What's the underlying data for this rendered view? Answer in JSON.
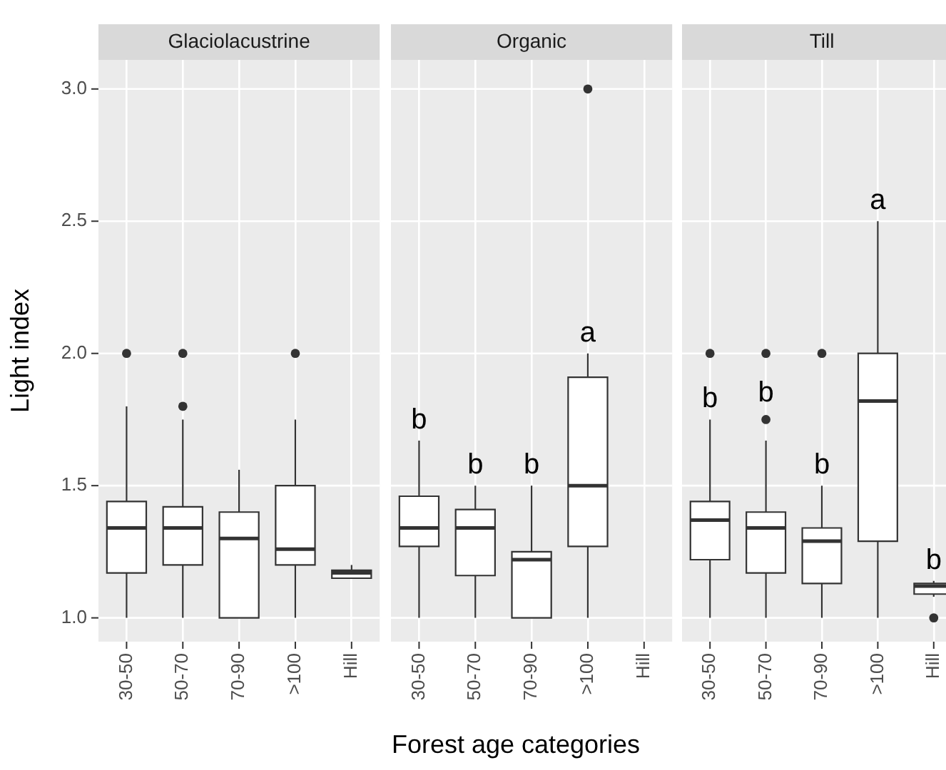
{
  "chart_data": [
    {
      "type": "box",
      "title": "Glaciolacustrine",
      "ylabel": "Light index",
      "categories": [
        "30-50",
        "50-70",
        "70-90",
        ">100",
        "Hill"
      ],
      "ylim": [
        0.91,
        3.11
      ],
      "yticks": [
        {
          "value": 1,
          "label": "1.0"
        },
        1.5,
        {
          "value": 2,
          "label": "2.0"
        },
        2.5,
        {
          "value": 3,
          "label": "3.0"
        }
      ],
      "grid": true,
      "legend": false,
      "boxes": [
        {
          "low": 1.0,
          "q1": 1.17,
          "median": 1.34,
          "q3": 1.44,
          "high": 1.8,
          "outliers": [
            2.0
          ]
        },
        {
          "low": 1.0,
          "q1": 1.2,
          "median": 1.34,
          "q3": 1.42,
          "high": 1.75,
          "outliers": [
            1.8,
            2.0
          ]
        },
        {
          "low": 1.0,
          "q1": 1.0,
          "median": 1.3,
          "q3": 1.4,
          "high": 1.56
        },
        {
          "low": 1.0,
          "q1": 1.2,
          "median": 1.26,
          "q3": 1.5,
          "high": 1.75,
          "outliers": [
            2.0
          ]
        },
        {
          "low": 1.15,
          "q1": 1.15,
          "median": 1.17,
          "q3": 1.18,
          "high": 1.2
        }
      ]
    },
    {
      "type": "box",
      "title": "Organic",
      "xlabel": "Forest age categories",
      "categories": [
        "30-50",
        "50-70",
        "70-90",
        ">100",
        "Hill"
      ],
      "ylim": [
        0.91,
        3.11
      ],
      "grid": true,
      "legend": false,
      "tick_labels": "x",
      "boxes": [
        {
          "low": 1.0,
          "q1": 1.27,
          "median": 1.34,
          "q3": 1.46,
          "high": 1.67
        },
        {
          "low": 1.0,
          "q1": 1.16,
          "median": 1.34,
          "q3": 1.41,
          "high": 1.5
        },
        {
          "low": 1.0,
          "q1": 1.0,
          "median": 1.22,
          "q3": 1.25,
          "high": 1.5
        },
        {
          "low": 1.0,
          "q1": 1.27,
          "median": 1.5,
          "q3": 1.91,
          "high": 2.0,
          "outliers": [
            3.0
          ]
        },
        null
      ],
      "annotations": [
        "b",
        "b",
        "b",
        "a"
      ]
    },
    {
      "type": "box",
      "title": "Till",
      "categories": [
        "30-50",
        "50-70",
        "70-90",
        ">100",
        "Hill"
      ],
      "ylim": [
        0.91,
        3.11
      ],
      "grid": true,
      "legend": false,
      "tick_labels": "x",
      "boxes": [
        {
          "low": 1.0,
          "q1": 1.22,
          "median": 1.37,
          "q3": 1.44,
          "high": 1.75,
          "outliers": [
            2.0
          ]
        },
        {
          "low": 1.0,
          "q1": 1.17,
          "median": 1.34,
          "q3": 1.4,
          "high": 1.67,
          "outliers": [
            1.75,
            2.0
          ]
        },
        {
          "low": 1.0,
          "q1": 1.13,
          "median": 1.29,
          "q3": 1.34,
          "high": 1.5,
          "outliers": [
            2.0
          ]
        },
        {
          "low": 1.0,
          "q1": 1.29,
          "median": 1.82,
          "q3": 2.0,
          "high": 2.5
        },
        {
          "low": 1.08,
          "q1": 1.09,
          "median": 1.12,
          "q3": 1.13,
          "high": 1.14,
          "outliers": [
            1.0
          ]
        }
      ],
      "annotations": [
        "b",
        "b",
        "b",
        "a",
        "b"
      ]
    }
  ]
}
